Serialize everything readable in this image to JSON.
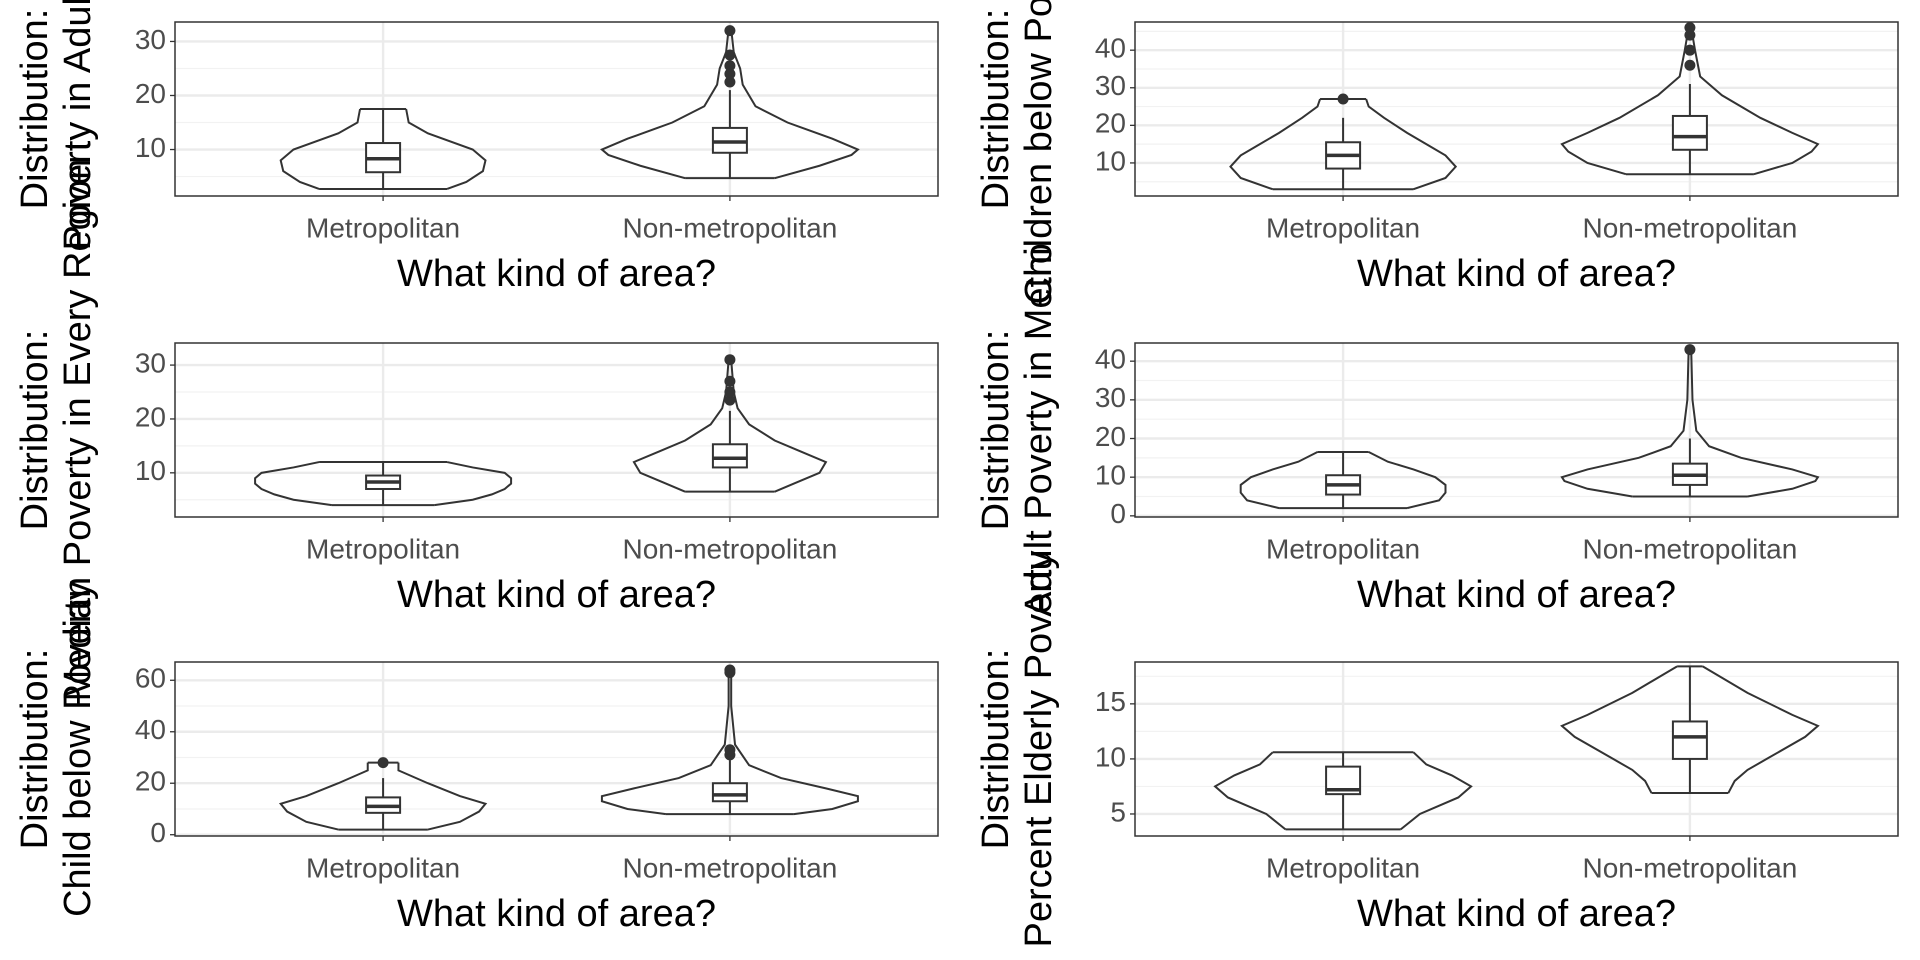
{
  "chart_data": [
    {
      "type": "violin",
      "x_label": "What kind of area?",
      "y_label": [
        "Distribution:",
        "Poverty in Adults"
      ],
      "categories": [
        "Metropolitan",
        "Non-metropolitan"
      ],
      "ylim": [
        1.4,
        33.6
      ],
      "yticks": [
        10,
        20,
        30
      ],
      "grid": true,
      "groups": [
        {
          "violin": {
            "y": [
              2.7,
              4,
              6,
              8,
              10,
              13,
              15,
              17.5
            ],
            "width": [
              0.5,
              0.65,
              0.78,
              0.8,
              0.7,
              0.35,
              0.2,
              0.18
            ]
          },
          "whisker_low": 2.7,
          "q1": 5.8,
          "median": 8.3,
          "q3": 11.2,
          "whisker_high": 17.5,
          "outliers": []
        },
        {
          "violin": {
            "y": [
              4.7,
              7,
              9,
              10,
              12,
              15,
              18,
              22,
              25,
              28,
              32.3
            ],
            "width": [
              0.35,
              0.7,
              0.95,
              1,
              0.8,
              0.45,
              0.2,
              0.1,
              0.08,
              0.03,
              0.01
            ]
          },
          "whisker_low": 4.7,
          "q1": 9.4,
          "median": 11.4,
          "q3": 14,
          "whisker_high": 21,
          "outliers": [
            22.5,
            24,
            25.5,
            27.5,
            32
          ]
        }
      ]
    },
    {
      "type": "violin",
      "x_label": "What kind of area?",
      "y_label": [
        "Distribution:",
        "Children below Poverty"
      ],
      "categories": [
        "Metropolitan",
        "Non-metropolitan"
      ],
      "ylim": [
        1.2,
        47.5
      ],
      "yticks": [
        10,
        20,
        30,
        40
      ],
      "grid": true,
      "groups": [
        {
          "violin": {
            "y": [
              3,
              6,
              9,
              12,
              15,
              18,
              22,
              25,
              27
            ],
            "width": [
              0.55,
              0.8,
              0.88,
              0.8,
              0.65,
              0.5,
              0.32,
              0.2,
              0.18
            ]
          },
          "whisker_low": 3,
          "q1": 8.5,
          "median": 12,
          "q3": 15.5,
          "whisker_high": 22,
          "outliers": [
            27
          ]
        },
        {
          "violin": {
            "y": [
              7,
              10,
              13,
              15,
              18,
              22,
              28,
              33,
              40,
              46
            ],
            "width": [
              0.5,
              0.8,
              0.95,
              1,
              0.8,
              0.55,
              0.25,
              0.08,
              0.04,
              0.01
            ]
          },
          "whisker_low": 7,
          "q1": 13.5,
          "median": 17,
          "q3": 22.5,
          "whisker_high": 31,
          "outliers": [
            36,
            40,
            44,
            46
          ]
        }
      ]
    },
    {
      "type": "violin",
      "x_label": "What kind of area?",
      "y_label": [
        "Distribution:",
        "Median Poverty in Every Region"
      ],
      "categories": [
        "Metropolitan",
        "Non-metropolitan"
      ],
      "ylim": [
        1.8,
        34.1
      ],
      "yticks": [
        10,
        20,
        30
      ],
      "grid": true,
      "groups": [
        {
          "violin": {
            "y": [
              4,
              5,
              6,
              7,
              8,
              9,
              10,
              11,
              12
            ],
            "width": [
              0.4,
              0.7,
              0.85,
              0.95,
              1,
              1,
              0.95,
              0.7,
              0.5
            ]
          },
          "whisker_low": 4,
          "q1": 7,
          "median": 8.3,
          "q3": 9.5,
          "whisker_high": 12,
          "outliers": []
        },
        {
          "violin": {
            "y": [
              6.5,
              8,
              10,
              12,
              14,
              16,
              19,
              22,
              25,
              31
            ],
            "width": [
              0.35,
              0.5,
              0.7,
              0.75,
              0.55,
              0.35,
              0.15,
              0.06,
              0.03,
              0.01
            ]
          },
          "whisker_low": 6.5,
          "q1": 11,
          "median": 12.7,
          "q3": 15.3,
          "whisker_high": 21.5,
          "outliers": [
            23.5,
            25,
            27,
            31
          ]
        }
      ]
    },
    {
      "type": "violin",
      "x_label": "What kind of area?",
      "y_label": [
        "Distribution:",
        "Adult Poverty in Metro"
      ],
      "categories": [
        "Metropolitan",
        "Non-metropolitan"
      ],
      "ylim": [
        -0.3,
        44.7
      ],
      "yticks": [
        0,
        10,
        20,
        30,
        40
      ],
      "grid": true,
      "groups": [
        {
          "violin": {
            "y": [
              2,
              4,
              6,
              8,
              10,
              12,
              14,
              16.5
            ],
            "width": [
              0.5,
              0.75,
              0.8,
              0.8,
              0.72,
              0.55,
              0.35,
              0.2
            ]
          },
          "whisker_low": 2,
          "q1": 5.5,
          "median": 8,
          "q3": 10.5,
          "whisker_high": 16.5,
          "outliers": []
        },
        {
          "violin": {
            "y": [
              5,
              7,
              9,
              10,
              12,
              15,
              18,
              22,
              30,
              43
            ],
            "width": [
              0.45,
              0.8,
              0.98,
              1,
              0.8,
              0.4,
              0.15,
              0.05,
              0.02,
              0.01
            ]
          },
          "whisker_low": 5,
          "q1": 8,
          "median": 10.5,
          "q3": 13.5,
          "whisker_high": 20,
          "outliers": [
            43
          ]
        }
      ]
    },
    {
      "type": "violin",
      "x_label": "What kind of area?",
      "y_label": [
        "Distribution:",
        "Child below Poverty"
      ],
      "categories": [
        "Metropolitan",
        "Non-metropolitan"
      ],
      "ylim": [
        -0.5,
        67.1
      ],
      "yticks": [
        0,
        20,
        40,
        60
      ],
      "grid": true,
      "groups": [
        {
          "violin": {
            "y": [
              2,
              5,
              9,
              12,
              15,
              20,
              25,
              28
            ],
            "width": [
              0.35,
              0.6,
              0.75,
              0.8,
              0.6,
              0.35,
              0.12,
              0.12
            ]
          },
          "whisker_low": 2,
          "q1": 8.5,
          "median": 11,
          "q3": 14.5,
          "whisker_high": 22,
          "outliers": [
            28
          ]
        },
        {
          "violin": {
            "y": [
              8,
              10,
              13,
              15,
              18,
              22,
              27,
              35,
              50,
              64
            ],
            "width": [
              0.5,
              0.8,
              1,
              1,
              0.75,
              0.4,
              0.15,
              0.04,
              0.01,
              0.01
            ]
          },
          "whisker_low": 8,
          "q1": 13,
          "median": 15.5,
          "q3": 20,
          "whisker_high": 29,
          "outliers": [
            31,
            33,
            63,
            64
          ]
        }
      ]
    },
    {
      "type": "violin",
      "x_label": "What kind of area?",
      "y_label": [
        "Distribution:",
        "Percent Elderly Poverty"
      ],
      "categories": [
        "Metropolitan",
        "Non-metropolitan"
      ],
      "ylim": [
        3.0,
        18.8
      ],
      "yticks": [
        5,
        10,
        15
      ],
      "grid": true,
      "groups": [
        {
          "violin": {
            "y": [
              3.6,
              5,
              6.5,
              7.5,
              8.5,
              9.5,
              10.6
            ],
            "width": [
              0.45,
              0.6,
              0.9,
              1,
              0.85,
              0.65,
              0.55
            ]
          },
          "whisker_low": 3.6,
          "q1": 6.8,
          "median": 7.2,
          "q3": 9.3,
          "whisker_high": 10.6,
          "outliers": []
        },
        {
          "violin": {
            "y": [
              6.9,
              8,
              9,
              10,
              12,
              13,
              14,
              16,
              18.4
            ],
            "width": [
              0.3,
              0.35,
              0.45,
              0.6,
              0.9,
              1,
              0.8,
              0.45,
              0.1
            ]
          },
          "whisker_low": 6.9,
          "q1": 10,
          "median": 12,
          "q3": 13.4,
          "whisker_high": 18.4,
          "outliers": []
        }
      ]
    }
  ]
}
